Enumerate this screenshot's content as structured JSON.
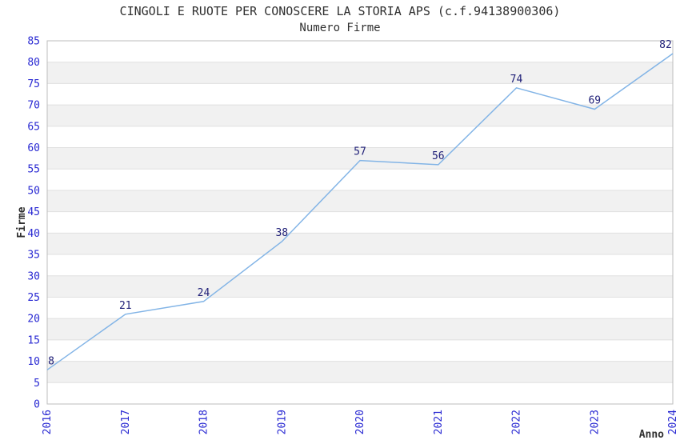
{
  "header": {
    "title": "CINGOLI E RUOTE PER CONOSCERE LA STORIA APS (c.f.94138900306)",
    "subtitle": "Numero Firme"
  },
  "chart_data": {
    "type": "line",
    "title": "CINGOLI E RUOTE PER CONOSCERE LA STORIA APS (c.f.94138900306)",
    "subtitle": "Numero Firme",
    "xlabel": "Anno",
    "ylabel": "Firme",
    "categories": [
      "2016",
      "2017",
      "2018",
      "2019",
      "2020",
      "2021",
      "2022",
      "2023",
      "2024"
    ],
    "values": [
      8,
      21,
      24,
      38,
      57,
      56,
      74,
      69,
      82
    ],
    "ylim": [
      0,
      85
    ],
    "ytick_step": 5,
    "grid": "horizontal-bands-alternating",
    "legend": "none",
    "point_labels_visible": true,
    "colors": {
      "line": "#82b4e6",
      "tick_label": "#2828d2",
      "point_label": "#202078",
      "band_fill": "#f1f1f1",
      "gridline": "#e0e0e0",
      "plot_border": "#bdbdbd",
      "text": "#303030"
    }
  }
}
